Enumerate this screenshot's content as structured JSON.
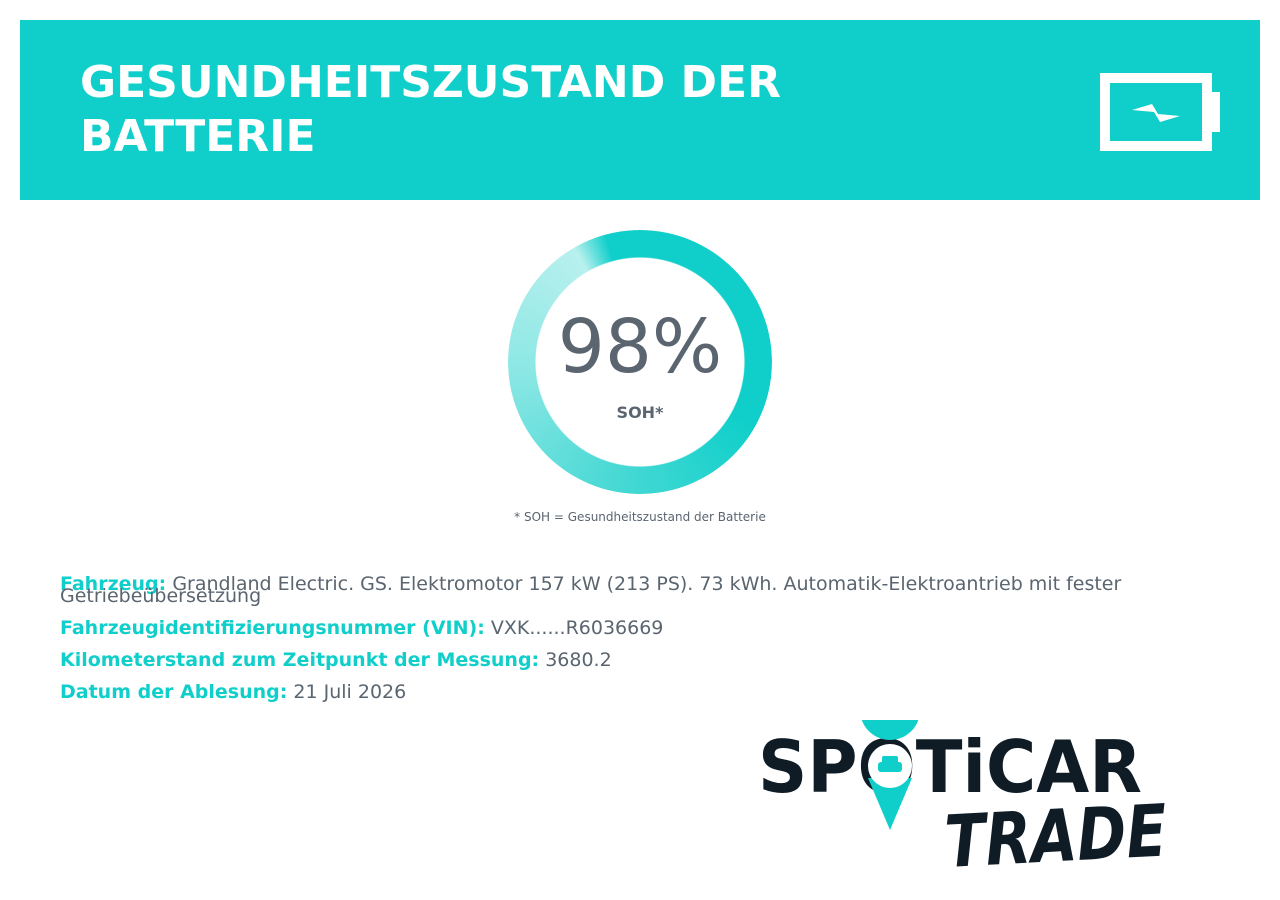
{
  "header": {
    "title": "GESUNDHEITSZUSTAND DER BATTERIE"
  },
  "gauge": {
    "value": "98%",
    "label": "SOH*",
    "footnote": "* SOH = Gesundheitszustand der Batterie"
  },
  "details": [
    {
      "label": "Fahrzeug:",
      "value": "Grandland Electric. GS. Elektromotor 157 kW (213 PS). 73 kWh. Automatik-Elektroantrieb mit fester Getriebeübersetzung"
    },
    {
      "label": "Fahrzeugidentifizierungsnummer (VIN):",
      "value": "VXK......R6036669"
    },
    {
      "label": "Kilometerstand zum Zeitpunkt der Messung:",
      "value": "3680.2"
    },
    {
      "label": "Datum der Ablesung:",
      "value": "21 Juli 2026"
    }
  ],
  "logo": {
    "brand": "SPOTiCAR",
    "sub": "TRADE"
  }
}
